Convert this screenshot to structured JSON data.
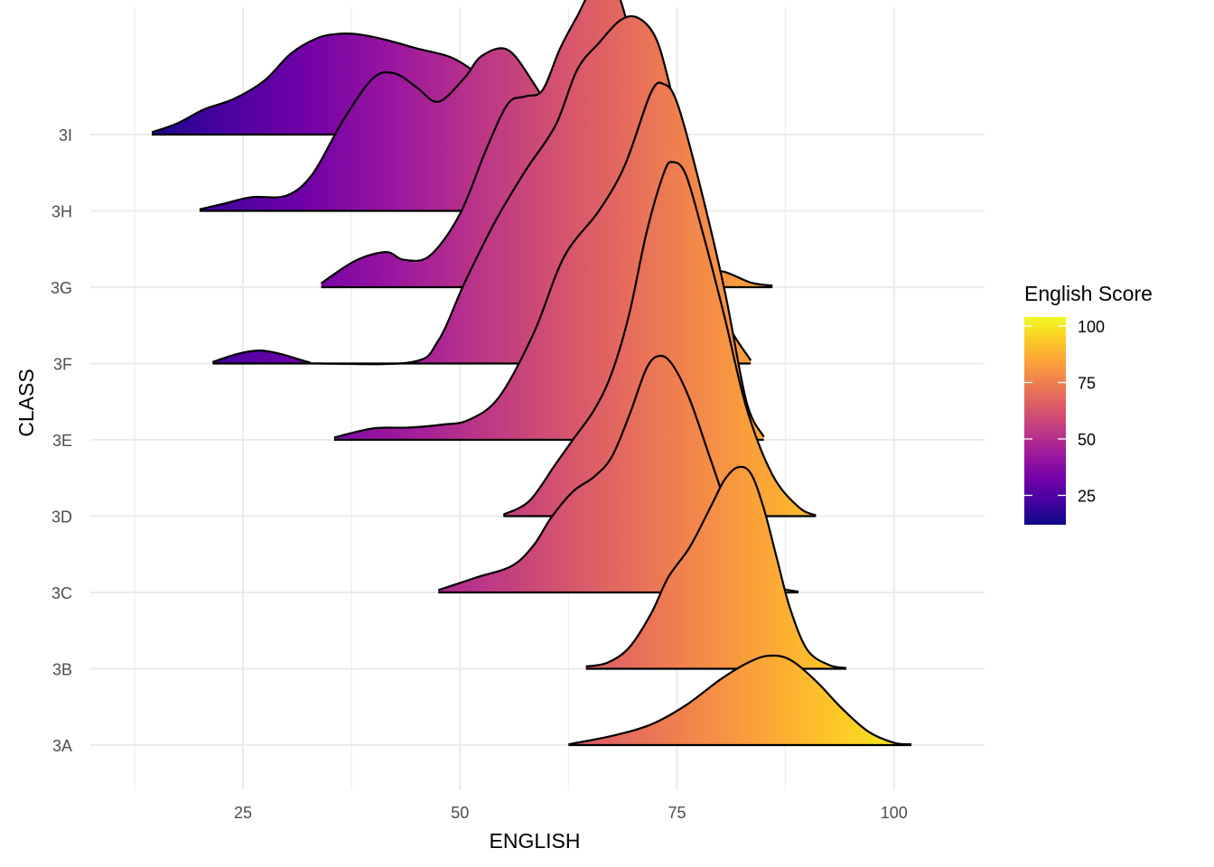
{
  "chart_data": {
    "type": "ridgeline density",
    "xlabel": "ENGLISH",
    "ylabel": "CLASS",
    "xlim": [
      8,
      110
    ],
    "x_ticks": [
      25,
      50,
      75,
      100
    ],
    "x_minor_ticks": [
      12.5,
      37.5,
      62.5,
      87.5
    ],
    "grid": true,
    "legend": {
      "title": "English Score",
      "position": "right",
      "range": [
        12,
        104
      ],
      "ticks": [
        25,
        50,
        75,
        100
      ],
      "colormap": "plasma",
      "colors": [
        "#0d0887",
        "#46039f",
        "#7201a8",
        "#9c179e",
        "#bd3786",
        "#d8576b",
        "#ed7953",
        "#fb9f3a",
        "#fdca26",
        "#f0f921"
      ]
    },
    "categories": [
      "3A",
      "3B",
      "3C",
      "3D",
      "3E",
      "3F",
      "3G",
      "3H",
      "3I"
    ],
    "series": [
      {
        "name": "3A",
        "x": [
          62.5,
          67.5,
          72,
          76,
          80,
          83,
          85.5,
          88,
          91,
          94,
          97,
          100,
          102
        ],
        "density": [
          0.01,
          0.12,
          0.27,
          0.52,
          0.86,
          1.07,
          1.17,
          1.12,
          0.84,
          0.48,
          0.18,
          0.03,
          0.01
        ]
      },
      {
        "name": "3B",
        "x": [
          64.5,
          67,
          69.5,
          72,
          74,
          76.5,
          79,
          80.5,
          82,
          83.5,
          85,
          86.5,
          88,
          90,
          92.5,
          94.5
        ],
        "density": [
          0.03,
          0.08,
          0.28,
          0.72,
          1.2,
          1.6,
          2.15,
          2.48,
          2.64,
          2.56,
          2.1,
          1.45,
          0.8,
          0.25,
          0.05,
          0.01
        ]
      },
      {
        "name": "3C",
        "x": [
          47.5,
          52,
          56,
          58.5,
          60.5,
          63,
          65.5,
          67.5,
          69.5,
          71.5,
          73,
          74.5,
          76.5,
          79,
          81.5,
          84,
          86.5,
          89
        ],
        "density": [
          0.03,
          0.2,
          0.35,
          0.62,
          0.98,
          1.32,
          1.52,
          1.78,
          2.32,
          2.94,
          3.1,
          2.98,
          2.52,
          1.7,
          0.9,
          0.35,
          0.08,
          0.01
        ]
      },
      {
        "name": "3D",
        "x": [
          55,
          58,
          61,
          63,
          65.5,
          67.5,
          69.5,
          71.5,
          73.5,
          74.5,
          76,
          78,
          80.5,
          83,
          86,
          89,
          91
        ],
        "density": [
          0.02,
          0.2,
          0.68,
          1.0,
          1.4,
          1.88,
          2.65,
          3.72,
          4.5,
          4.64,
          4.48,
          3.7,
          2.6,
          1.42,
          0.54,
          0.12,
          0.01
        ]
      },
      {
        "name": "3E",
        "x": [
          35.5,
          40,
          44,
          48,
          51,
          54.5,
          58.5,
          62,
          66,
          69,
          72,
          73.5,
          75,
          77.5,
          80.5,
          83,
          85
        ],
        "density": [
          0.03,
          0.15,
          0.16,
          0.2,
          0.26,
          0.56,
          1.4,
          2.4,
          3.0,
          3.6,
          4.55,
          4.66,
          4.42,
          3.4,
          1.95,
          0.5,
          0.04
        ]
      },
      {
        "name": "3F",
        "x": [
          21.5,
          24.5,
          27,
          29.5,
          32.5,
          34,
          44.5,
          47.5,
          50.5,
          54,
          57.5,
          61,
          63.5,
          66,
          68.5,
          70.5,
          72.5,
          74,
          75.5,
          77.5,
          80.5,
          83.5
        ],
        "density": [
          0.02,
          0.13,
          0.17,
          0.12,
          0.02,
          0.0,
          0.02,
          0.3,
          1.05,
          1.85,
          2.52,
          3.12,
          3.85,
          4.2,
          4.5,
          4.53,
          4.28,
          3.72,
          2.95,
          1.62,
          0.6,
          0.04
        ]
      },
      {
        "name": "3G",
        "x": [
          34,
          38,
          41.5,
          43.5,
          46.5,
          50,
          53,
          55.5,
          57.5,
          59.5,
          61.5,
          63.5,
          65.5,
          68,
          70.5,
          72.5,
          74.5,
          77,
          80.5,
          83.5,
          86
        ],
        "density": [
          0.05,
          0.35,
          0.46,
          0.36,
          0.41,
          0.96,
          1.8,
          2.4,
          2.5,
          2.58,
          3.12,
          3.55,
          3.94,
          3.9,
          2.86,
          1.72,
          0.82,
          0.28,
          0.2,
          0.06,
          0.02
        ]
      },
      {
        "name": "3H",
        "x": [
          20,
          23,
          26,
          30,
          33,
          36.5,
          40,
          42.5,
          45,
          47.5,
          50.5,
          52.5,
          55.5,
          58.5,
          62,
          65.5,
          68.5,
          71,
          74
        ],
        "density": [
          0.02,
          0.1,
          0.18,
          0.2,
          0.48,
          1.18,
          1.74,
          1.8,
          1.62,
          1.43,
          1.74,
          2.03,
          2.11,
          1.67,
          1.01,
          0.46,
          0.13,
          0.04,
          0.01
        ]
      },
      {
        "name": "3I",
        "x": [
          14.5,
          17.5,
          20.5,
          24,
          27.5,
          30.5,
          33.5,
          36,
          38.5,
          41.5,
          45,
          49,
          52,
          54.5,
          57,
          59,
          61,
          63,
          65.5,
          67.5,
          70
        ],
        "density": [
          0.03,
          0.15,
          0.33,
          0.47,
          0.71,
          1.06,
          1.26,
          1.32,
          1.31,
          1.24,
          1.13,
          1.01,
          0.8,
          0.6,
          0.44,
          0.39,
          0.32,
          0.21,
          0.08,
          0.02,
          0.01
        ]
      }
    ]
  }
}
